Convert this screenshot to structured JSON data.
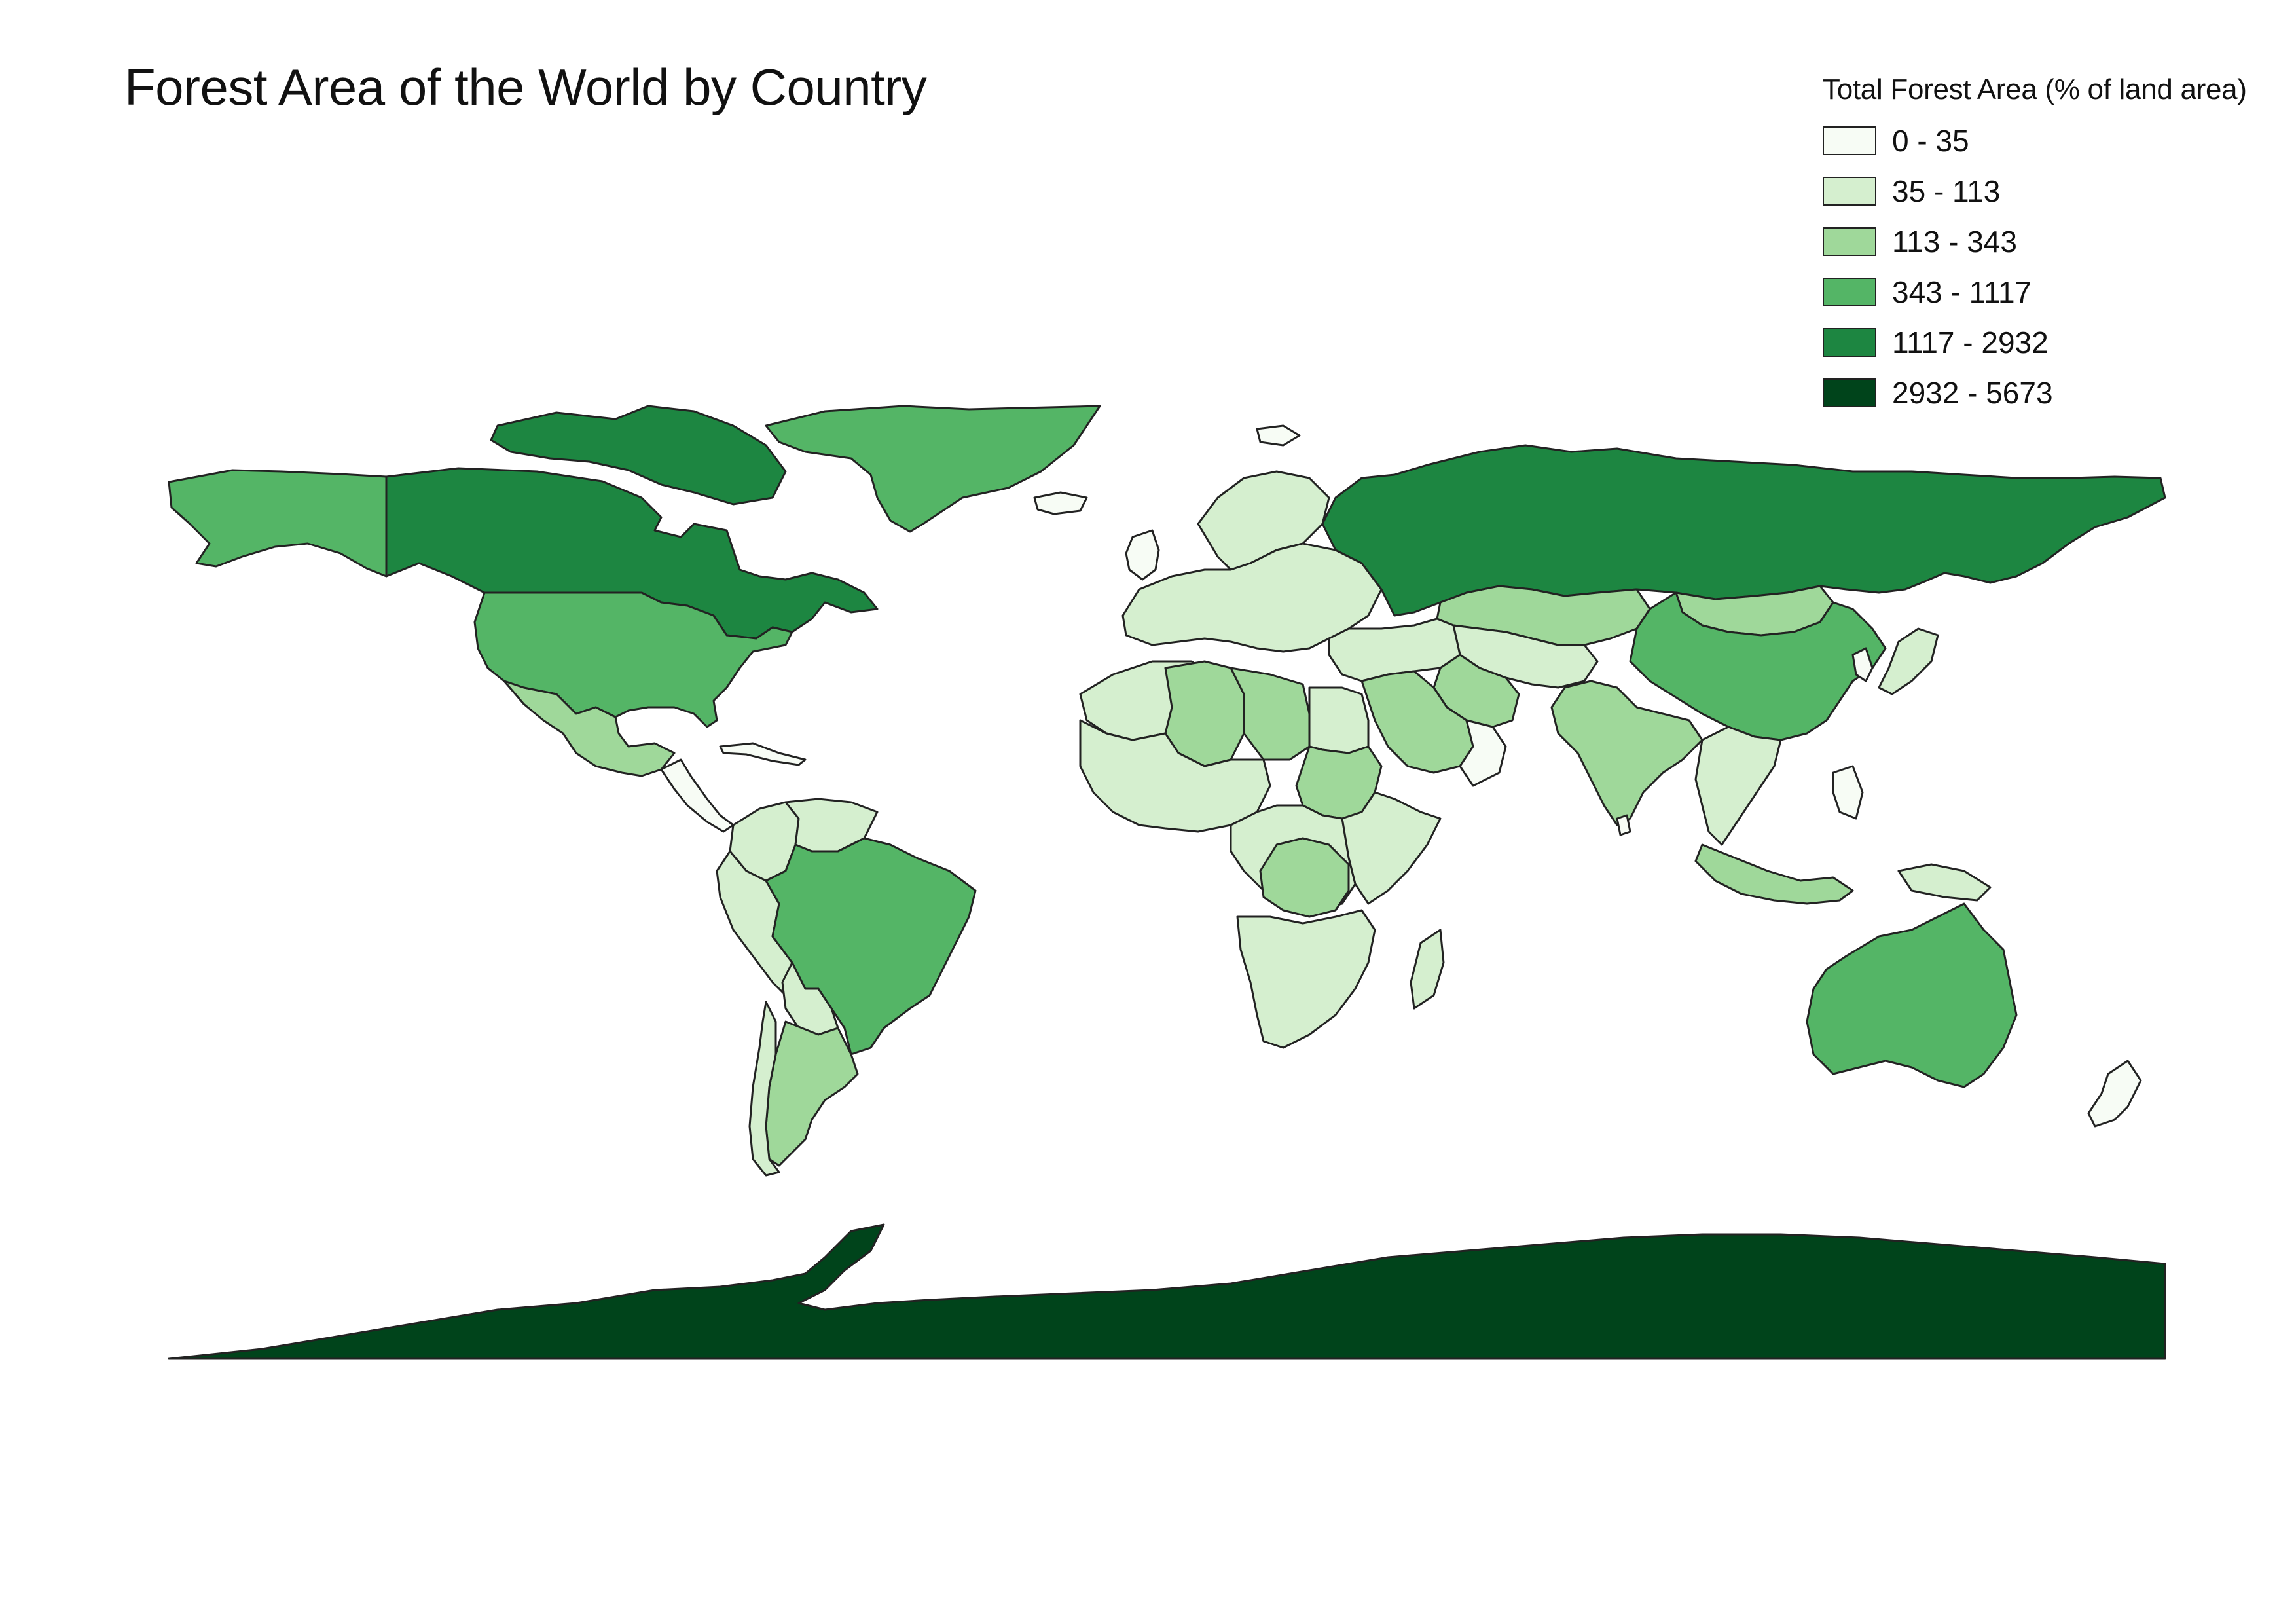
{
  "map": {
    "title": "Forest Area of the World by Country",
    "legend": {
      "title": "Total Forest Area (% of land area)",
      "classes": [
        {
          "label": "0 - 35",
          "color": "#f7fcf5"
        },
        {
          "label": "35 - 113",
          "color": "#d5efcf"
        },
        {
          "label": "113 - 343",
          "color": "#9fd89a"
        },
        {
          "label": "343 - 1117",
          "color": "#54b566"
        },
        {
          "label": "1117 - 2932",
          "color": "#1d8641"
        },
        {
          "label": "2932 - 5673",
          "color": "#00441b"
        }
      ]
    },
    "style": {
      "border_color": "#222222",
      "background": "#ffffff"
    },
    "regions": [
      {
        "name": "Canada",
        "class": 4
      },
      {
        "name": "Russia",
        "class": 4
      },
      {
        "name": "Antarctica",
        "class": 5
      },
      {
        "name": "United States",
        "class": 3
      },
      {
        "name": "Alaska",
        "class": 3
      },
      {
        "name": "Greenland",
        "class": 3
      },
      {
        "name": "Brazil",
        "class": 3
      },
      {
        "name": "China",
        "class": 3
      },
      {
        "name": "Australia",
        "class": 3
      },
      {
        "name": "Mexico",
        "class": 2
      },
      {
        "name": "Argentina",
        "class": 2
      },
      {
        "name": "Kazakhstan",
        "class": 2
      },
      {
        "name": "India",
        "class": 2
      },
      {
        "name": "Sudan",
        "class": 2
      },
      {
        "name": "Algeria",
        "class": 2
      },
      {
        "name": "Libya",
        "class": 2
      },
      {
        "name": "Saudi Arabia",
        "class": 2
      },
      {
        "name": "DR Congo",
        "class": 2
      },
      {
        "name": "Mongolia",
        "class": 2
      },
      {
        "name": "Iran",
        "class": 2
      },
      {
        "name": "Indonesia",
        "class": 2
      },
      {
        "name": "Peru",
        "class": 1
      },
      {
        "name": "Colombia",
        "class": 1
      },
      {
        "name": "Venezuela",
        "class": 1
      },
      {
        "name": "Bolivia",
        "class": 1
      },
      {
        "name": "Chile",
        "class": 1
      },
      {
        "name": "Europe",
        "class": 1
      },
      {
        "name": "Scandinavia",
        "class": 1
      },
      {
        "name": "North Africa",
        "class": 1
      },
      {
        "name": "Egypt",
        "class": 1
      },
      {
        "name": "West Africa",
        "class": 1
      },
      {
        "name": "Central Africa",
        "class": 1
      },
      {
        "name": "East Africa",
        "class": 1
      },
      {
        "name": "Southern Africa",
        "class": 1
      },
      {
        "name": "Madagascar",
        "class": 1
      },
      {
        "name": "Middle East",
        "class": 1
      },
      {
        "name": "Central Asia",
        "class": 1
      },
      {
        "name": "Southeast Asia",
        "class": 1
      },
      {
        "name": "Japan",
        "class": 1
      },
      {
        "name": "Papua New Guinea",
        "class": 1
      },
      {
        "name": "New Zealand",
        "class": 0
      },
      {
        "name": "Central America",
        "class": 0
      },
      {
        "name": "Caribbean",
        "class": 0
      },
      {
        "name": "United Kingdom",
        "class": 0
      },
      {
        "name": "Iceland",
        "class": 0
      },
      {
        "name": "Korea",
        "class": 0
      },
      {
        "name": "Arabian Peninsula East",
        "class": 0
      },
      {
        "name": "Philippines",
        "class": 0
      },
      {
        "name": "Svalbard",
        "class": 0
      },
      {
        "name": "Sri Lanka",
        "class": 0
      },
      {
        "name": "Arctic Islands",
        "class": 4
      }
    ]
  }
}
